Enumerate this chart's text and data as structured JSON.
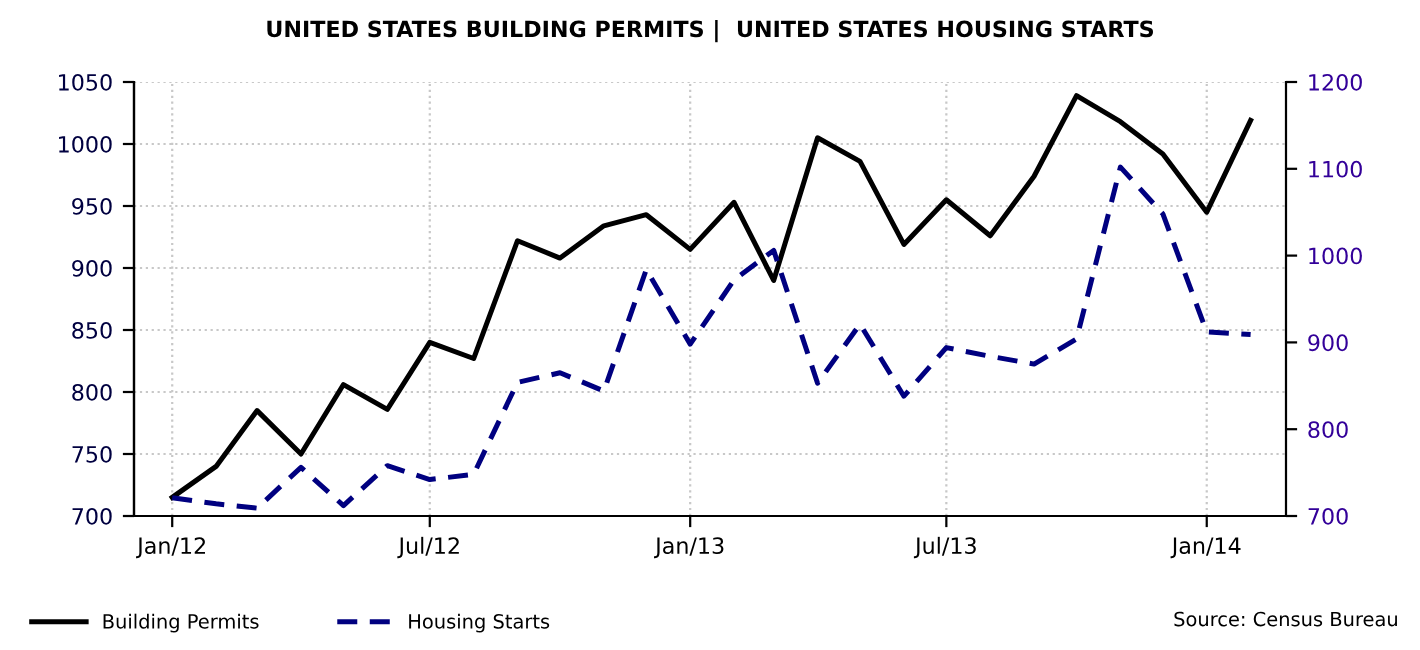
{
  "chart_data": {
    "type": "line",
    "title": "UNITED STATES BUILDING PERMITS |  UNITED STATES HOUSING STARTS",
    "x": [
      "2012-01",
      "2012-02",
      "2012-03",
      "2012-04",
      "2012-05",
      "2012-06",
      "2012-07",
      "2012-08",
      "2012-09",
      "2012-10",
      "2012-11",
      "2012-12",
      "2013-01",
      "2013-02",
      "2013-03",
      "2013-04",
      "2013-05",
      "2013-06",
      "2013-07",
      "2013-08",
      "2013-09",
      "2013-10",
      "2013-11",
      "2013-12",
      "2014-01",
      "2014-02"
    ],
    "series": [
      {
        "name": "Building Permits",
        "color": "#000000",
        "line_style": "solid",
        "values": [
          715,
          740,
          785,
          750,
          806,
          786,
          840,
          827,
          922,
          908,
          934,
          943,
          915,
          953,
          890,
          1005,
          986,
          919,
          955,
          926,
          974,
          1039,
          1018,
          992,
          945,
          1019
        ]
      },
      {
        "name": "Housing Starts",
        "color": "#000080",
        "line_style": "dashed",
        "axis": "y2",
        "values": [
          721,
          714,
          709,
          756,
          712,
          758,
          742,
          748,
          854,
          865,
          844,
          984,
          898,
          972,
          1006,
          853,
          921,
          838,
          894,
          884,
          875,
          904,
          1102,
          1048,
          912,
          909
        ]
      }
    ],
    "xlim": [
      "2011-12-05",
      "2014-02-26"
    ],
    "xticks": [
      {
        "value": "2012-01",
        "label": "Jan/12"
      },
      {
        "value": "2012-07",
        "label": "Jul/12"
      },
      {
        "value": "2013-01",
        "label": "Jan/13"
      },
      {
        "value": "2013-07",
        "label": "Jul/13"
      },
      {
        "value": "2014-01",
        "label": "Jan/14"
      }
    ],
    "ylim": [
      700,
      1050
    ],
    "yticks": [
      700,
      750,
      800,
      850,
      900,
      950,
      1000,
      1050
    ],
    "y2lim": [
      700,
      1200
    ],
    "y2ticks": [
      700,
      800,
      900,
      1000,
      1100,
      1200
    ],
    "grid": true,
    "legend": "bottom",
    "annotations": [
      "Source: Census Bureau"
    ]
  }
}
